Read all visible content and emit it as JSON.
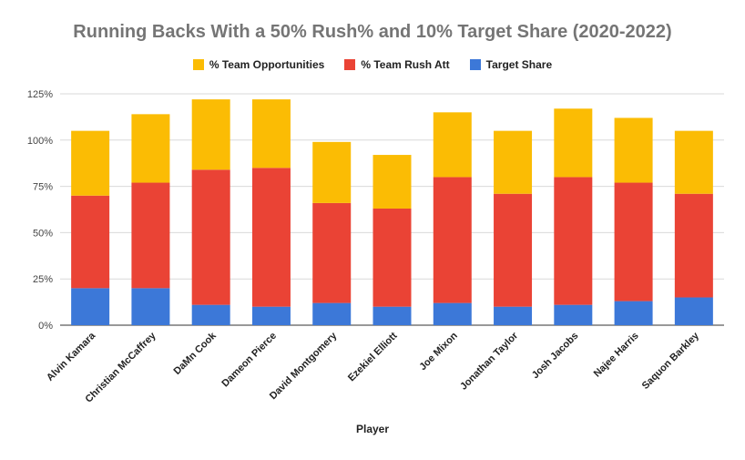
{
  "chart_data": {
    "type": "bar",
    "stacked": true,
    "title": "Running Backs With a 50% Rush% and 10% Target Share (2020-2022)",
    "xlabel": "Player",
    "ylabel": "",
    "ylim": [
      0,
      125
    ],
    "yticks": [
      "0%",
      "25%",
      "50%",
      "75%",
      "100%",
      "125%"
    ],
    "grid": true,
    "legend_position": "top",
    "categories": [
      "Alvin Kamara",
      "Christian McCaffrey",
      "DaMn Cook",
      "Dameon Pierce",
      "David Montgomery",
      "Ezekiel Elliott",
      "Joe Mixon",
      "Jonathan Taylor",
      "Josh Jacobs",
      "Najee Harris",
      "Saquon Barkley"
    ],
    "series": [
      {
        "name": "Target Share",
        "color": "#3c78d8",
        "values": [
          20,
          20,
          11,
          10,
          12,
          10,
          12,
          10,
          11,
          13,
          15
        ]
      },
      {
        "name": "% Team Rush Att",
        "color": "#ea4335",
        "values": [
          50,
          57,
          73,
          75,
          54,
          53,
          68,
          61,
          69,
          64,
          56
        ]
      },
      {
        "name": "% Team Opportunities",
        "color": "#fbbc04",
        "values": [
          35,
          37,
          38,
          37,
          33,
          29,
          35,
          34,
          37,
          35,
          34
        ]
      }
    ],
    "legend_order": [
      2,
      1,
      0
    ]
  }
}
